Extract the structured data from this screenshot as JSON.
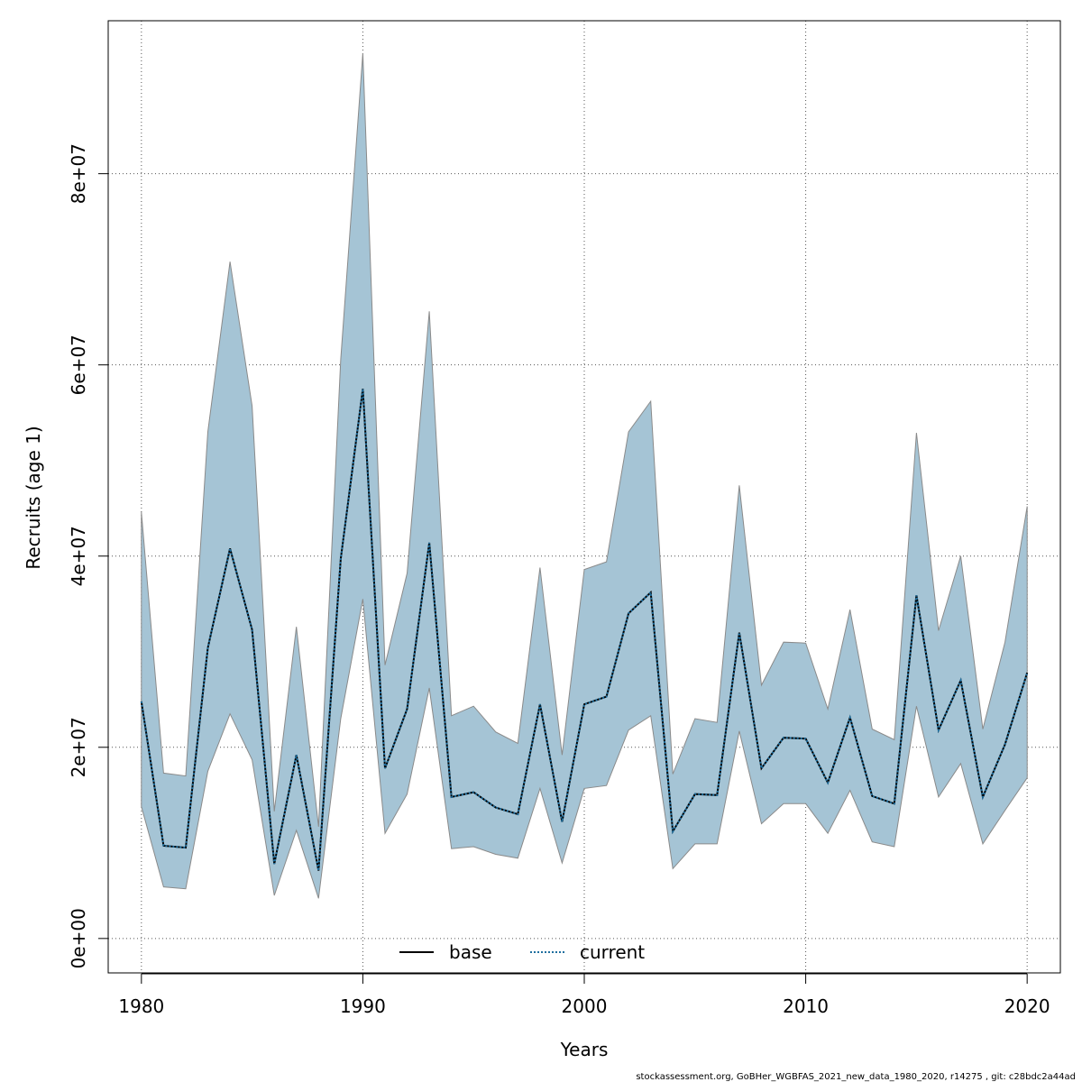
{
  "chart_data": {
    "type": "area",
    "title": "",
    "xlabel": "Years",
    "ylabel": "Recruits (age 1)",
    "xlim": [
      1978.5,
      2021.5
    ],
    "ylim": [
      -3600000,
      96000000
    ],
    "xticks": [
      {
        "value": 1980,
        "label": "1980"
      },
      {
        "value": 1990,
        "label": "1990"
      },
      {
        "value": 2000,
        "label": "2000"
      },
      {
        "value": 2010,
        "label": "2010"
      },
      {
        "value": 2020,
        "label": "2020"
      }
    ],
    "yticks": [
      {
        "value": 0,
        "label": "0e+00"
      },
      {
        "value": 20000000,
        "label": "2e+07"
      },
      {
        "value": 40000000,
        "label": "4e+07"
      },
      {
        "value": 60000000,
        "label": "6e+07"
      },
      {
        "value": 80000000,
        "label": "8e+07"
      }
    ],
    "grid": true,
    "legend_position": "bottom-center",
    "x": [
      1980,
      1981,
      1982,
      1983,
      1984,
      1985,
      1986,
      1987,
      1988,
      1989,
      1990,
      1991,
      1992,
      1993,
      1994,
      1995,
      1996,
      1997,
      1998,
      1999,
      2000,
      2001,
      2002,
      2003,
      2004,
      2005,
      2006,
      2007,
      2008,
      2009,
      2010,
      2011,
      2012,
      2013,
      2014,
      2015,
      2016,
      2017,
      2018,
      2019,
      2020
    ],
    "band_lower": [
      13800000,
      5400000,
      5200000,
      17500000,
      23500000,
      18700000,
      4500000,
      11300000,
      4200000,
      23000000,
      35500000,
      11000000,
      15100000,
      26200000,
      9400000,
      9600000,
      8800000,
      8400000,
      15700000,
      7900000,
      15700000,
      16000000,
      21800000,
      23300000,
      7300000,
      9900000,
      9900000,
      21700000,
      12000000,
      14100000,
      14100000,
      11000000,
      15500000,
      10100000,
      9600000,
      24300000,
      14800000,
      18300000,
      9900000,
      13400000,
      16800000
    ],
    "band_upper": [
      44600000,
      17300000,
      17000000,
      53000000,
      70800000,
      55700000,
      13300000,
      32600000,
      11700000,
      60600000,
      92600000,
      28600000,
      38200000,
      65600000,
      23300000,
      24300000,
      21600000,
      20400000,
      38800000,
      19200000,
      38600000,
      39400000,
      53000000,
      56200000,
      17200000,
      23000000,
      22600000,
      47400000,
      26500000,
      31000000,
      30900000,
      24000000,
      34400000,
      21900000,
      20800000,
      52900000,
      32200000,
      40000000,
      21900000,
      31000000,
      45200000
    ],
    "series": [
      {
        "name": "base",
        "color": "#000000",
        "style": "solid",
        "values": [
          24800000,
          9700000,
          9500000,
          30400000,
          40800000,
          32300000,
          7800000,
          19200000,
          7100000,
          39700000,
          57500000,
          17800000,
          24000000,
          41400000,
          14800000,
          15300000,
          13700000,
          13000000,
          24500000,
          12200000,
          24500000,
          25300000,
          34000000,
          36200000,
          11200000,
          15100000,
          15000000,
          32000000,
          17800000,
          21000000,
          20900000,
          16300000,
          23100000,
          14900000,
          14100000,
          35900000,
          21800000,
          27000000,
          14800000,
          20300000,
          27800000
        ]
      },
      {
        "name": "current",
        "color": "#1f6f9f",
        "style": "dotted",
        "values": [
          24800000,
          9700000,
          9500000,
          30400000,
          40800000,
          32300000,
          7800000,
          19200000,
          7100000,
          39700000,
          57500000,
          17800000,
          24000000,
          41400000,
          14800000,
          15300000,
          13700000,
          13000000,
          24500000,
          12200000,
          24500000,
          25300000,
          34000000,
          36200000,
          11200000,
          15100000,
          15000000,
          32000000,
          17800000,
          21000000,
          20900000,
          16300000,
          23100000,
          14900000,
          14100000,
          35900000,
          21800000,
          27000000,
          14800000,
          20300000,
          27800000
        ]
      }
    ],
    "band_color": "#a5c4d5",
    "band_edge_color": "#8a8a8a",
    "legend": [
      {
        "label": "base",
        "style": "solid",
        "color": "#000000"
      },
      {
        "label": "current",
        "style": "dotted",
        "color": "#1f6f9f"
      }
    ]
  },
  "footer": "stockassessment.org, GoBHer_WGBFAS_2021_new_data_1980_2020, r14275 , git: c28bdc2a44ad"
}
